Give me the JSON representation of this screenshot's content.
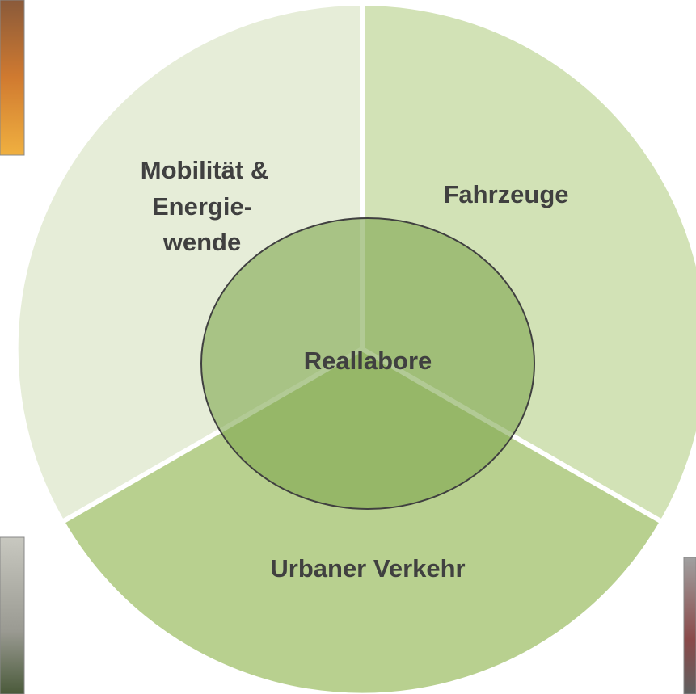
{
  "nodes": [
    {
      "lines": [
        "Mobilität &",
        "Energie-",
        "wende"
      ]
    },
    {
      "lines": [
        "Fahrzeuge"
      ]
    },
    {
      "lines": [
        "Urbaner Verkehr"
      ]
    },
    {
      "lines": [
        "Reallabore"
      ]
    }
  ]
}
